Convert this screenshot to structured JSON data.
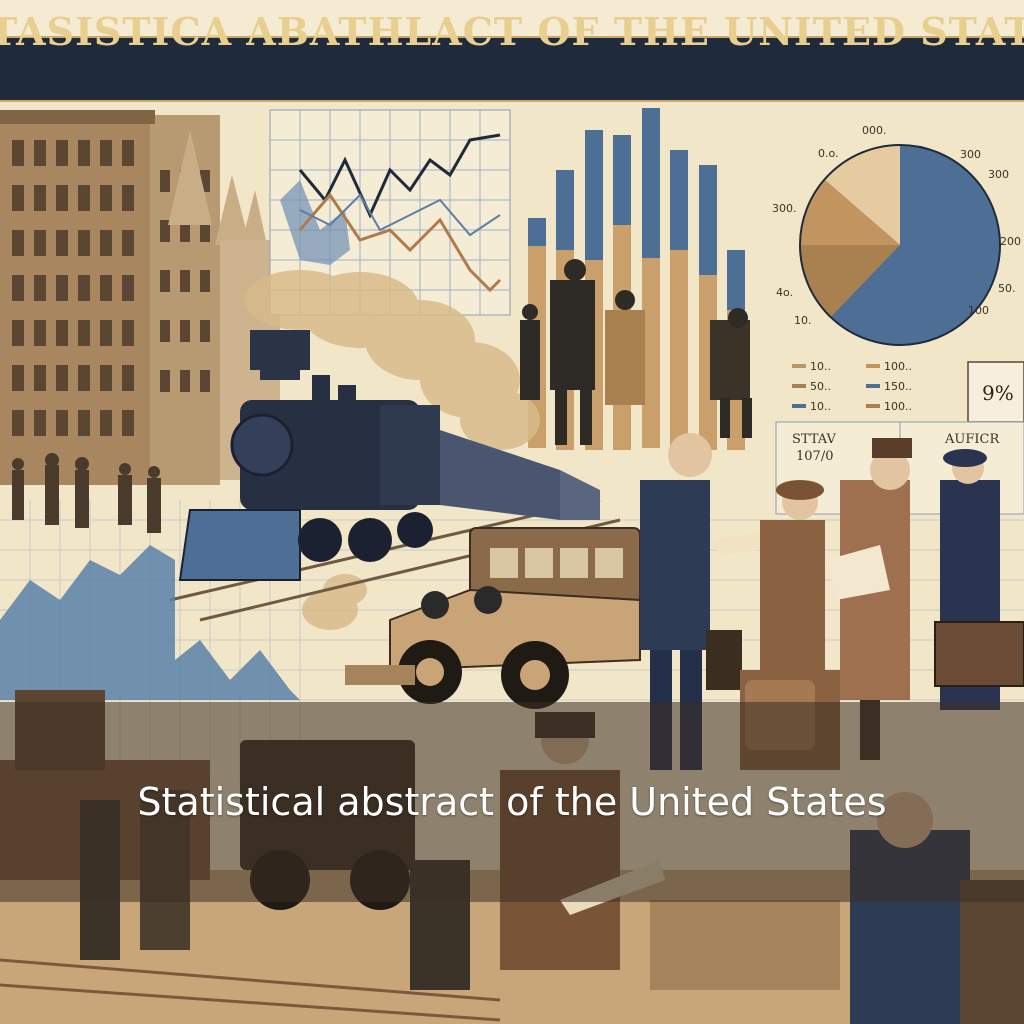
{
  "banner": {
    "title": "SATASISTICA ABATHLACT OF THE UNITED STATES"
  },
  "caption": {
    "text": "Statistical abstract of the United States"
  },
  "pie_labels": [
    "000.",
    "0.o.",
    "300",
    "300.",
    "300",
    "200",
    "4o.",
    "10.",
    "100",
    "50."
  ],
  "legend_items": [
    "10..",
    "50..",
    "10..",
    "100..",
    "150..",
    "100.."
  ],
  "percent_box": "9%",
  "table_header_left": "STTAV",
  "table_header_left_sub": "107/0",
  "table_header_right": "AUFICR",
  "colors": {
    "banner_bg": "#1f2a3a",
    "banner_text": "#e9cf8f",
    "paper": "#f2e6c9",
    "blue": "#4d6f96",
    "tan": "#c79f6b",
    "navy": "#1f2a3a"
  }
}
